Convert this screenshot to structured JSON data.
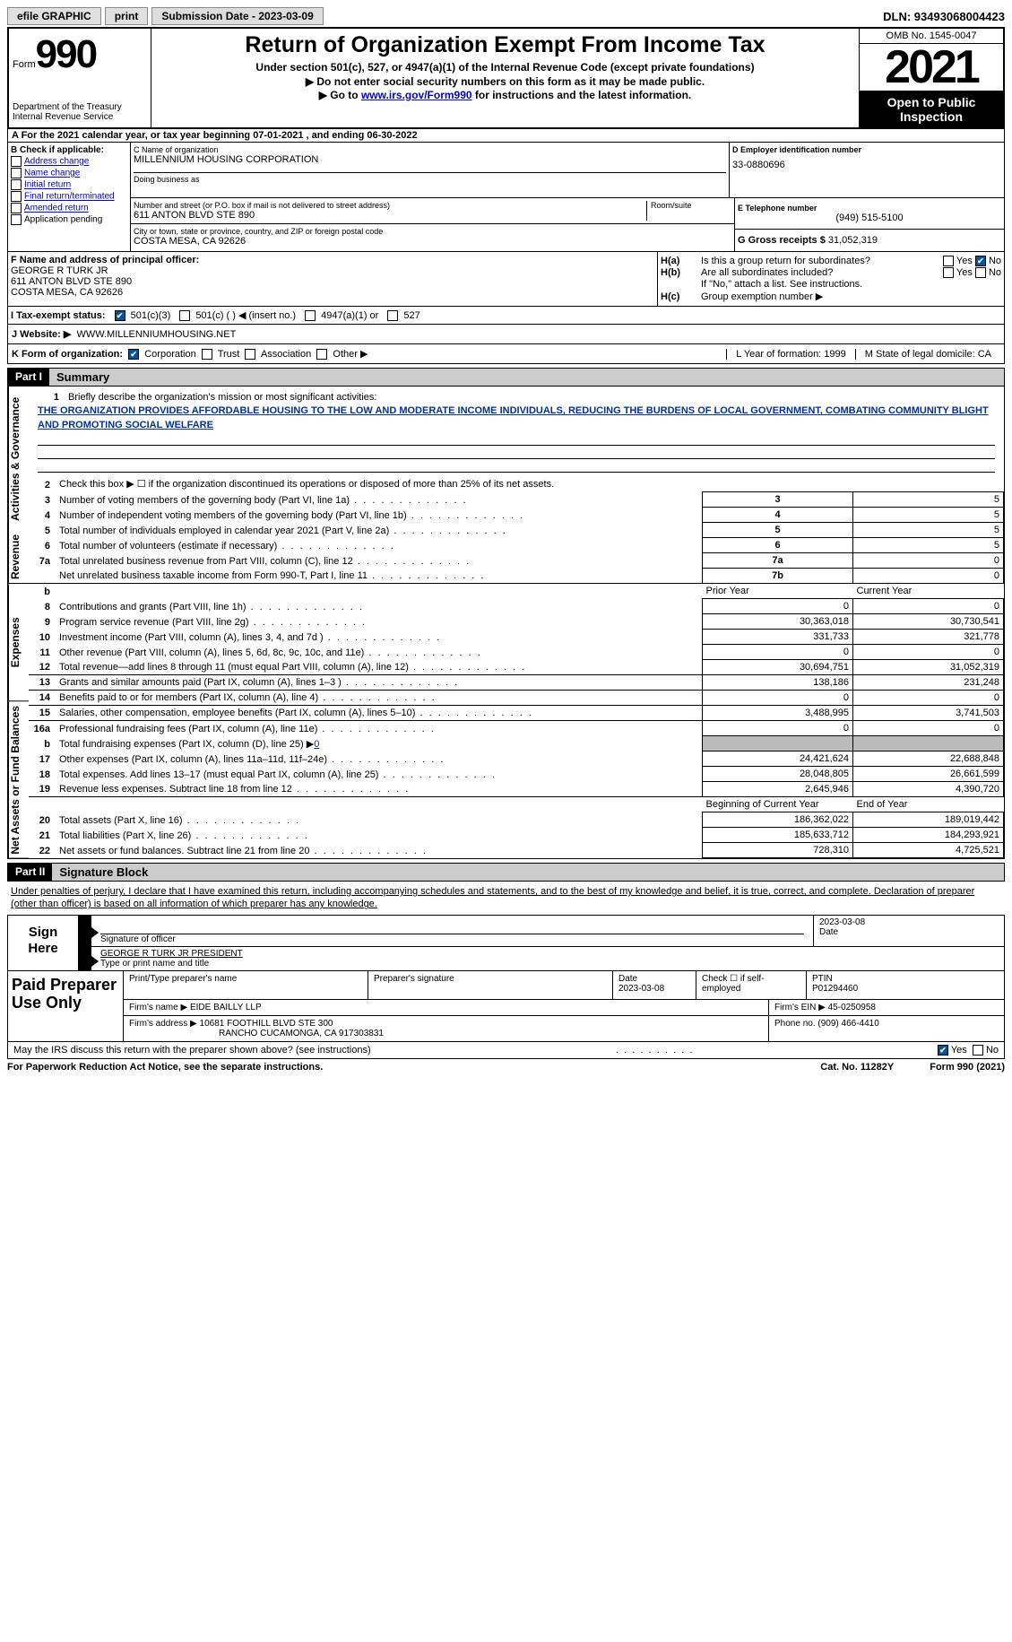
{
  "top": {
    "efile": "efile GRAPHIC",
    "print": "print",
    "submission": "Submission Date - 2023-03-09",
    "dln": "DLN: 93493068004423"
  },
  "header": {
    "form_word": "Form",
    "form_num": "990",
    "title": "Return of Organization Exempt From Income Tax",
    "subtitle": "Under section 501(c), 527, or 4947(a)(1) of the Internal Revenue Code (except private foundations)",
    "note1": "▶ Do not enter social security numbers on this form as it may be made public.",
    "note2_pre": "▶ Go to ",
    "note2_link": "www.irs.gov/Form990",
    "note2_post": " for instructions and the latest information.",
    "dept": "Department of the Treasury\nInternal Revenue Service",
    "omb": "OMB No. 1545-0047",
    "year": "2021",
    "open": "Open to Public Inspection"
  },
  "rowA": "A For the 2021 calendar year, or tax year beginning 07-01-2021   , and ending 06-30-2022",
  "B": {
    "header": "B Check if applicable:",
    "opts": [
      "Address change",
      "Name change",
      "Initial return",
      "Final return/terminated",
      "Amended return",
      "Application pending"
    ]
  },
  "C": {
    "name_label": "C Name of organization",
    "name": "MILLENNIUM HOUSING CORPORATION",
    "dba_label": "Doing business as",
    "street_label": "Number and street (or P.O. box if mail is not delivered to street address)",
    "street": "611 ANTON BLVD STE 890",
    "room_label": "Room/suite",
    "city_label": "City or town, state or province, country, and ZIP or foreign postal code",
    "city": "COSTA MESA, CA  92626"
  },
  "D": {
    "label": "D Employer identification number",
    "value": "33-0880696"
  },
  "E": {
    "label": "E Telephone number",
    "value": "(949) 515-5100"
  },
  "G": {
    "label": "G Gross receipts $",
    "value": "31,052,319"
  },
  "F": {
    "label": "F  Name and address of principal officer:",
    "l1": "GEORGE R TURK JR",
    "l2": "611 ANTON BLVD STE 890",
    "l3": "COSTA MESA, CA  92626"
  },
  "H": {
    "a": "Is this a group return for subordinates?",
    "b": "Are all subordinates included?",
    "b_note": "If \"No,\" attach a list. See instructions.",
    "c": "Group exemption number ▶",
    "yes": "Yes",
    "no": "No"
  },
  "I": {
    "label": "I   Tax-exempt status:",
    "o1": "501(c)(3)",
    "o2": "501(c) (  ) ◀ (insert no.)",
    "o3": "4947(a)(1) or",
    "o4": "527"
  },
  "J": {
    "label": "J   Website: ▶",
    "value": "WWW.MILLENNIUMHOUSING.NET"
  },
  "K": {
    "label": "K Form of organization:",
    "opts": [
      "Corporation",
      "Trust",
      "Association",
      "Other ▶"
    ],
    "L": "L Year of formation: 1999",
    "M": "M State of legal domicile: CA"
  },
  "part1": {
    "num": "Part I",
    "title": "Summary"
  },
  "summary": {
    "side1": "Activities & Governance",
    "side2": "Revenue",
    "side3": "Expenses",
    "side4": "Net Assets or Fund Balances",
    "l1_label": "Briefly describe the organization's mission or most significant activities:",
    "l1_text": "THE ORGANIZATION PROVIDES AFFORDABLE HOUSING TO THE LOW AND MODERATE INCOME INDIVIDUALS, REDUCING THE BURDENS OF LOCAL GOVERNMENT, COMBATING COMMUNITY BLIGHT AND PROMOTING SOCIAL WELFARE",
    "l2": "Check this box ▶ ☐  if the organization discontinued its operations or disposed of more than 25% of its net assets.",
    "rows_top": [
      {
        "n": "3",
        "t": "Number of voting members of the governing body (Part VI, line 1a)",
        "box": "3",
        "v": "5"
      },
      {
        "n": "4",
        "t": "Number of independent voting members of the governing body (Part VI, line 1b)",
        "box": "4",
        "v": "5"
      },
      {
        "n": "5",
        "t": "Total number of individuals employed in calendar year 2021 (Part V, line 2a)",
        "box": "5",
        "v": "5"
      },
      {
        "n": "6",
        "t": "Total number of volunteers (estimate if necessary)",
        "box": "6",
        "v": "5"
      },
      {
        "n": "7a",
        "t": "Total unrelated business revenue from Part VIII, column (C), line 12",
        "box": "7a",
        "v": "0"
      },
      {
        "n": "",
        "t": "Net unrelated business taxable income from Form 990-T, Part I, line 11",
        "box": "7b",
        "v": "0"
      }
    ],
    "col_hdr_prior": "Prior Year",
    "col_hdr_current": "Current Year",
    "rows_rev": [
      {
        "n": "8",
        "t": "Contributions and grants (Part VIII, line 1h)",
        "p": "0",
        "c": "0"
      },
      {
        "n": "9",
        "t": "Program service revenue (Part VIII, line 2g)",
        "p": "30,363,018",
        "c": "30,730,541"
      },
      {
        "n": "10",
        "t": "Investment income (Part VIII, column (A), lines 3, 4, and 7d )",
        "p": "331,733",
        "c": "321,778"
      },
      {
        "n": "11",
        "t": "Other revenue (Part VIII, column (A), lines 5, 6d, 8c, 9c, 10c, and 11e)",
        "p": "0",
        "c": "0"
      },
      {
        "n": "12",
        "t": "Total revenue—add lines 8 through 11 (must equal Part VIII, column (A), line 12)",
        "p": "30,694,751",
        "c": "31,052,319"
      }
    ],
    "rows_exp": [
      {
        "n": "13",
        "t": "Grants and similar amounts paid (Part IX, column (A), lines 1–3 )",
        "p": "138,186",
        "c": "231,248"
      },
      {
        "n": "14",
        "t": "Benefits paid to or for members (Part IX, column (A), line 4)",
        "p": "0",
        "c": "0"
      },
      {
        "n": "15",
        "t": "Salaries, other compensation, employee benefits (Part IX, column (A), lines 5–10)",
        "p": "3,488,995",
        "c": "3,741,503"
      },
      {
        "n": "16a",
        "t": "Professional fundraising fees (Part IX, column (A), line 11e)",
        "p": "0",
        "c": "0"
      }
    ],
    "row_b": {
      "n": "b",
      "t": "Total fundraising expenses (Part IX, column (D), line 25) ▶",
      "v": "0"
    },
    "rows_exp2": [
      {
        "n": "17",
        "t": "Other expenses (Part IX, column (A), lines 11a–11d, 11f–24e)",
        "p": "24,421,624",
        "c": "22,688,848"
      },
      {
        "n": "18",
        "t": "Total expenses. Add lines 13–17 (must equal Part IX, column (A), line 25)",
        "p": "28,048,805",
        "c": "26,661,599"
      },
      {
        "n": "19",
        "t": "Revenue less expenses. Subtract line 18 from line 12",
        "p": "2,645,946",
        "c": "4,390,720"
      }
    ],
    "col_hdr_beg": "Beginning of Current Year",
    "col_hdr_end": "End of Year",
    "rows_net": [
      {
        "n": "20",
        "t": "Total assets (Part X, line 16)",
        "p": "186,362,022",
        "c": "189,019,442"
      },
      {
        "n": "21",
        "t": "Total liabilities (Part X, line 26)",
        "p": "185,633,712",
        "c": "184,293,921"
      },
      {
        "n": "22",
        "t": "Net assets or fund balances. Subtract line 21 from line 20",
        "p": "728,310",
        "c": "4,725,521"
      }
    ]
  },
  "part2": {
    "num": "Part II",
    "title": "Signature Block"
  },
  "sig": {
    "declaration": "Under penalties of perjury, I declare that I have examined this return, including accompanying schedules and statements, and to the best of my knowledge and belief, it is true, correct, and complete. Declaration of preparer (other than officer) is based on all information of which preparer has any knowledge.",
    "sign_here": "Sign Here",
    "sig_officer": "Signature of officer",
    "date": "Date",
    "sig_date": "2023-03-08",
    "name_title": "GEORGE R TURK JR  PRESIDENT",
    "type_name": "Type or print name and title"
  },
  "prep": {
    "label": "Paid Preparer Use Only",
    "r1": {
      "c1_lbl": "Print/Type preparer's name",
      "c2_lbl": "Preparer's signature",
      "c3_lbl": "Date",
      "c3_val": "2023-03-08",
      "c4_lbl": "Check ☐ if self-employed",
      "c5_lbl": "PTIN",
      "c5_val": "P01294460"
    },
    "r2": {
      "lbl": "Firm's name    ▶",
      "val": "EIDE BAILLY LLP",
      "ein_lbl": "Firm's EIN ▶",
      "ein_val": "45-0250958"
    },
    "r3": {
      "lbl": "Firm's address ▶",
      "l1": "10681 FOOTHILL BLVD STE 300",
      "l2": "RANCHO CUCAMONGA, CA  917303831",
      "ph_lbl": "Phone no.",
      "ph_val": "(909) 466-4410"
    }
  },
  "foot": {
    "q": "May the IRS discuss this return with the preparer shown above? (see instructions)",
    "yes": "Yes",
    "no": "No",
    "pra": "For Paperwork Reduction Act Notice, see the separate instructions.",
    "cat": "Cat. No. 11282Y",
    "form": "Form 990 (2021)"
  }
}
